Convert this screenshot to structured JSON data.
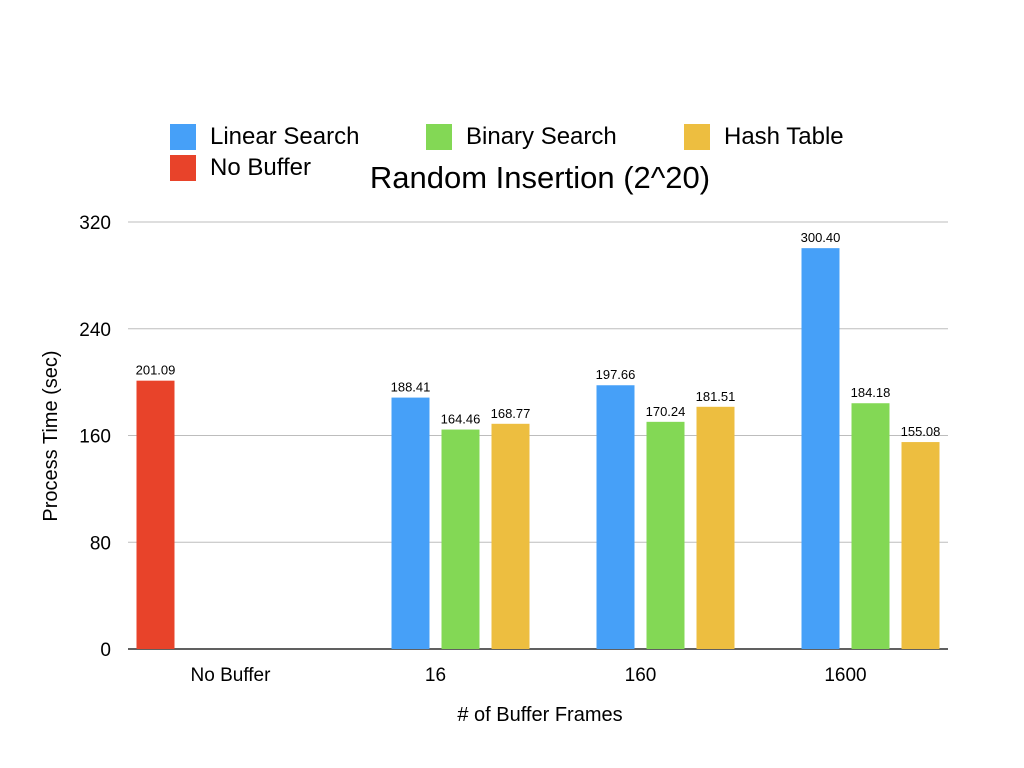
{
  "chart_data": {
    "type": "bar",
    "title": "Random Insertion (2^20)",
    "xlabel": "# of Buffer Frames",
    "ylabel": "Process Time (sec)",
    "categories": [
      "No Buffer",
      "16",
      "160",
      "1600"
    ],
    "ylim": [
      0,
      320
    ],
    "yticks": [
      "0",
      "80",
      "160",
      "240",
      "320"
    ],
    "grid": true,
    "legend_position": "top",
    "series": [
      {
        "name": "No Buffer",
        "color": "#E8432A",
        "values": [
          201.09,
          null,
          null,
          null
        ],
        "labels": [
          "201.09",
          "",
          "",
          ""
        ]
      },
      {
        "name": "Linear Search",
        "color": "#46A0F8",
        "values": [
          null,
          188.41,
          197.66,
          300.4
        ],
        "labels": [
          "",
          "188.41",
          "197.66",
          "300.40"
        ]
      },
      {
        "name": "Binary Search",
        "color": "#83D855",
        "values": [
          null,
          164.46,
          170.24,
          184.18
        ],
        "labels": [
          "",
          "164.46",
          "170.24",
          "184.18"
        ]
      },
      {
        "name": "Hash Table",
        "color": "#EDBE40",
        "values": [
          null,
          168.77,
          181.51,
          155.08
        ],
        "labels": [
          "",
          "168.77",
          "181.51",
          "155.08"
        ]
      }
    ]
  },
  "legend": {
    "linear": "Linear Search",
    "binary": "Binary Search",
    "hash": "Hash Table",
    "nobuffer": "No Buffer"
  }
}
